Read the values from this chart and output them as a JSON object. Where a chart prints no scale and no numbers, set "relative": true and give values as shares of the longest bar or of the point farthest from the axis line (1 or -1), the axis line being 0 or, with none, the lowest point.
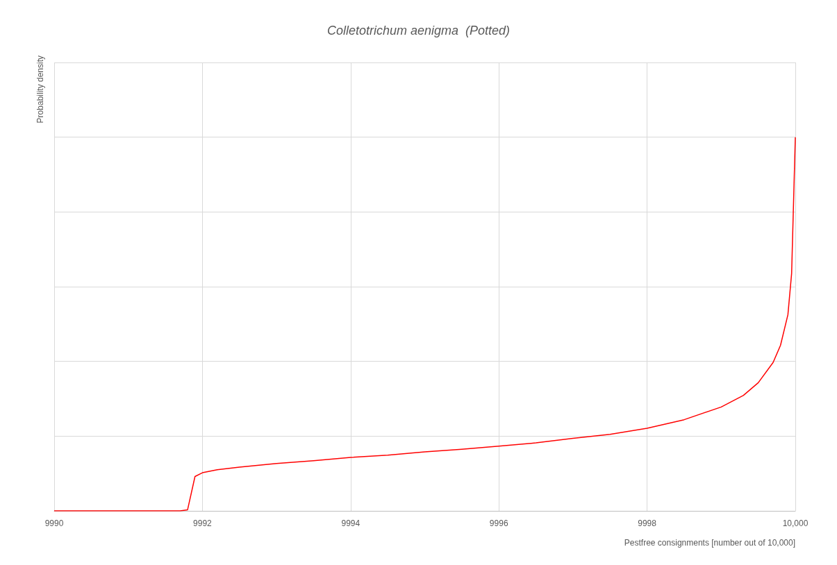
{
  "chart_data": {
    "type": "line",
    "title": "Colletotrichum aenigma  (Potted)",
    "xlabel": "Pestfree consignments [number out of 10,000]",
    "ylabel": "Probability density",
    "relative": true,
    "xlim": [
      9990,
      10000
    ],
    "xticks": [
      9990,
      9992,
      9994,
      9996,
      9998,
      {
        "value": 10000,
        "label": "10,000"
      }
    ],
    "x": [
      9990,
      9991.7,
      9991.8,
      9991.9,
      9992,
      9992.2,
      9992.5,
      9993,
      9993.5,
      9994,
      9994.5,
      9995,
      9995.5,
      9996,
      9996.5,
      9997,
      9997.5,
      9998,
      9998.5,
      9999,
      9999.3,
      9999.5,
      9999.7,
      9999.8,
      9999.9,
      9999.95,
      10000
    ],
    "series": [
      {
        "color": "#ff0000",
        "values": [
          0,
          0,
          0.003,
          0.092,
          0.102,
          0.11,
          0.117,
          0.127,
          0.134,
          0.143,
          0.149,
          0.158,
          0.165,
          0.173,
          0.182,
          0.194,
          0.205,
          0.221,
          0.244,
          0.278,
          0.309,
          0.343,
          0.397,
          0.443,
          0.525,
          0.635,
          1
        ]
      }
    ],
    "grid": true,
    "marker": "none",
    "line_style": "solid"
  }
}
